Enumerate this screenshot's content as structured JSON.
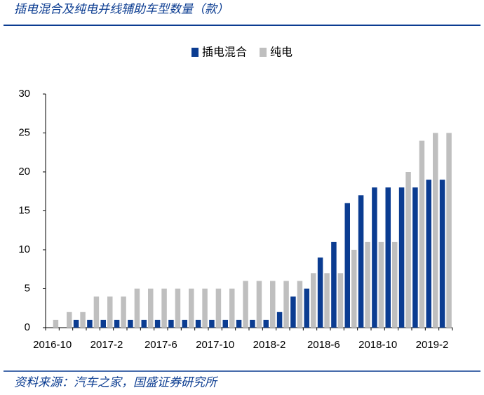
{
  "chart_data": {
    "type": "bar",
    "title": "插电混合及纯电并线辅助车型数量（款）",
    "source": "资料来源：汽车之家，国盛证券研究所",
    "categories": [
      "2016-10",
      null,
      null,
      null,
      "2017-2",
      null,
      null,
      null,
      "2017-6",
      null,
      null,
      null,
      "2017-10",
      null,
      null,
      null,
      "2018-2",
      null,
      null,
      null,
      "2018-6",
      null,
      null,
      null,
      "2018-10",
      null,
      null,
      null,
      "2019-2",
      null
    ],
    "series": [
      {
        "name": "插电混合",
        "color": "#0b3c91",
        "values": [
          0,
          0,
          1,
          1,
          1,
          1,
          1,
          1,
          1,
          1,
          1,
          1,
          1,
          1,
          1,
          1,
          1,
          2,
          4,
          5,
          9,
          11,
          16,
          17,
          18,
          18,
          18,
          18,
          19,
          19
        ]
      },
      {
        "name": "纯电",
        "color": "#bfbfbf",
        "values": [
          1,
          2,
          2,
          4,
          4,
          4,
          5,
          5,
          5,
          5,
          5,
          5,
          5,
          5,
          6,
          6,
          6,
          6,
          6,
          7,
          7,
          7,
          10,
          11,
          11,
          11,
          20,
          24,
          25,
          25
        ]
      }
    ],
    "ylim": [
      0,
      30
    ],
    "yticks": [
      0,
      5,
      10,
      15,
      20,
      25,
      30
    ],
    "legend": "top"
  }
}
